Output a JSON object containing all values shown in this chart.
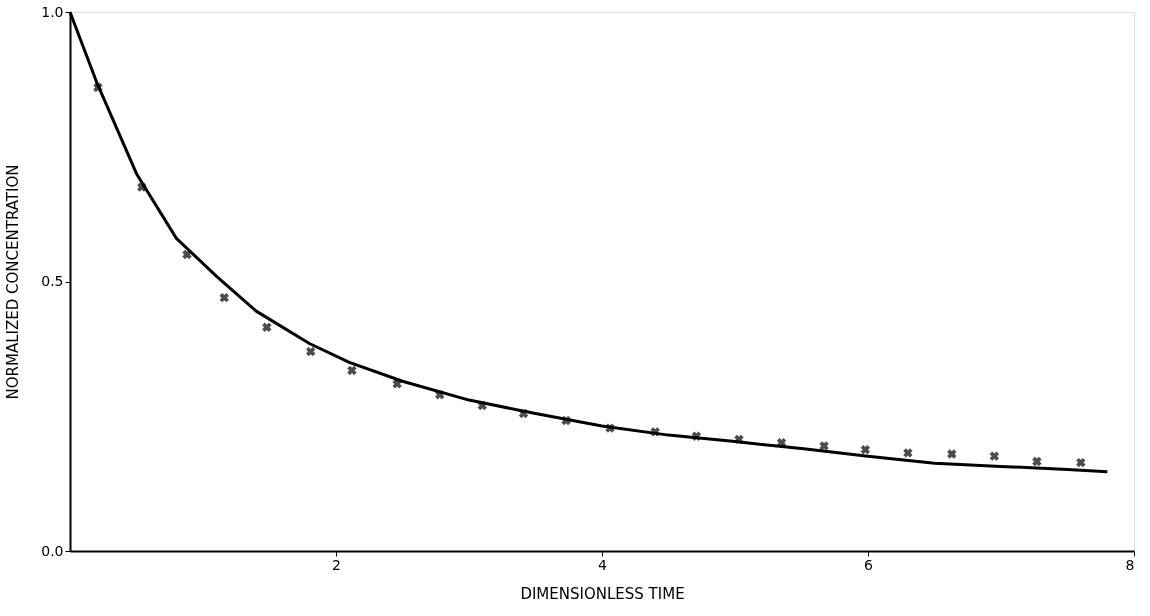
{
  "chart_data": {
    "type": "line",
    "xlabel": "DIMENSIONLESS TIME",
    "ylabel": "NORMALIZED CONCENTRATION",
    "xlim": [
      0,
      8
    ],
    "ylim": [
      0,
      1
    ],
    "xticks": [
      2,
      4,
      6,
      8
    ],
    "yticks": [
      {
        "value": 0,
        "label": "0.0"
      },
      0.5,
      {
        "value": 1,
        "label": "1.0"
      }
    ],
    "grid": false,
    "series": [
      {
        "color": "#000000",
        "line_style": "solid",
        "marker": "none",
        "x": [
          0,
          0.2,
          0.5,
          0.8,
          1.1,
          1.4,
          1.8,
          2.1,
          2.5,
          3.0,
          3.5,
          4.0,
          4.5,
          5.0,
          5.5,
          6.0,
          6.5,
          7.0,
          7.5,
          7.8
        ],
        "values": [
          1.0,
          0.87,
          0.7,
          0.58,
          0.51,
          0.445,
          0.385,
          0.35,
          0.315,
          0.28,
          0.255,
          0.232,
          0.215,
          0.203,
          0.19,
          0.176,
          0.163,
          0.157,
          0.151,
          0.147
        ]
      },
      {
        "type": "scatter",
        "color": "#000000",
        "marker": "cross",
        "x": [
          0.21,
          0.54,
          0.88,
          1.16,
          1.48,
          1.81,
          2.12,
          2.46,
          2.78,
          3.1,
          3.41,
          3.73,
          4.06,
          4.4,
          4.71,
          5.03,
          5.35,
          5.67,
          5.98,
          6.3,
          6.63,
          6.95,
          7.27,
          7.6
        ],
        "values": [
          0.86,
          0.675,
          0.55,
          0.47,
          0.415,
          0.37,
          0.335,
          0.31,
          0.29,
          0.27,
          0.255,
          0.242,
          0.228,
          0.221,
          0.213,
          0.207,
          0.201,
          0.195,
          0.188,
          0.182,
          0.18,
          0.176,
          0.166,
          0.164
        ]
      }
    ]
  }
}
